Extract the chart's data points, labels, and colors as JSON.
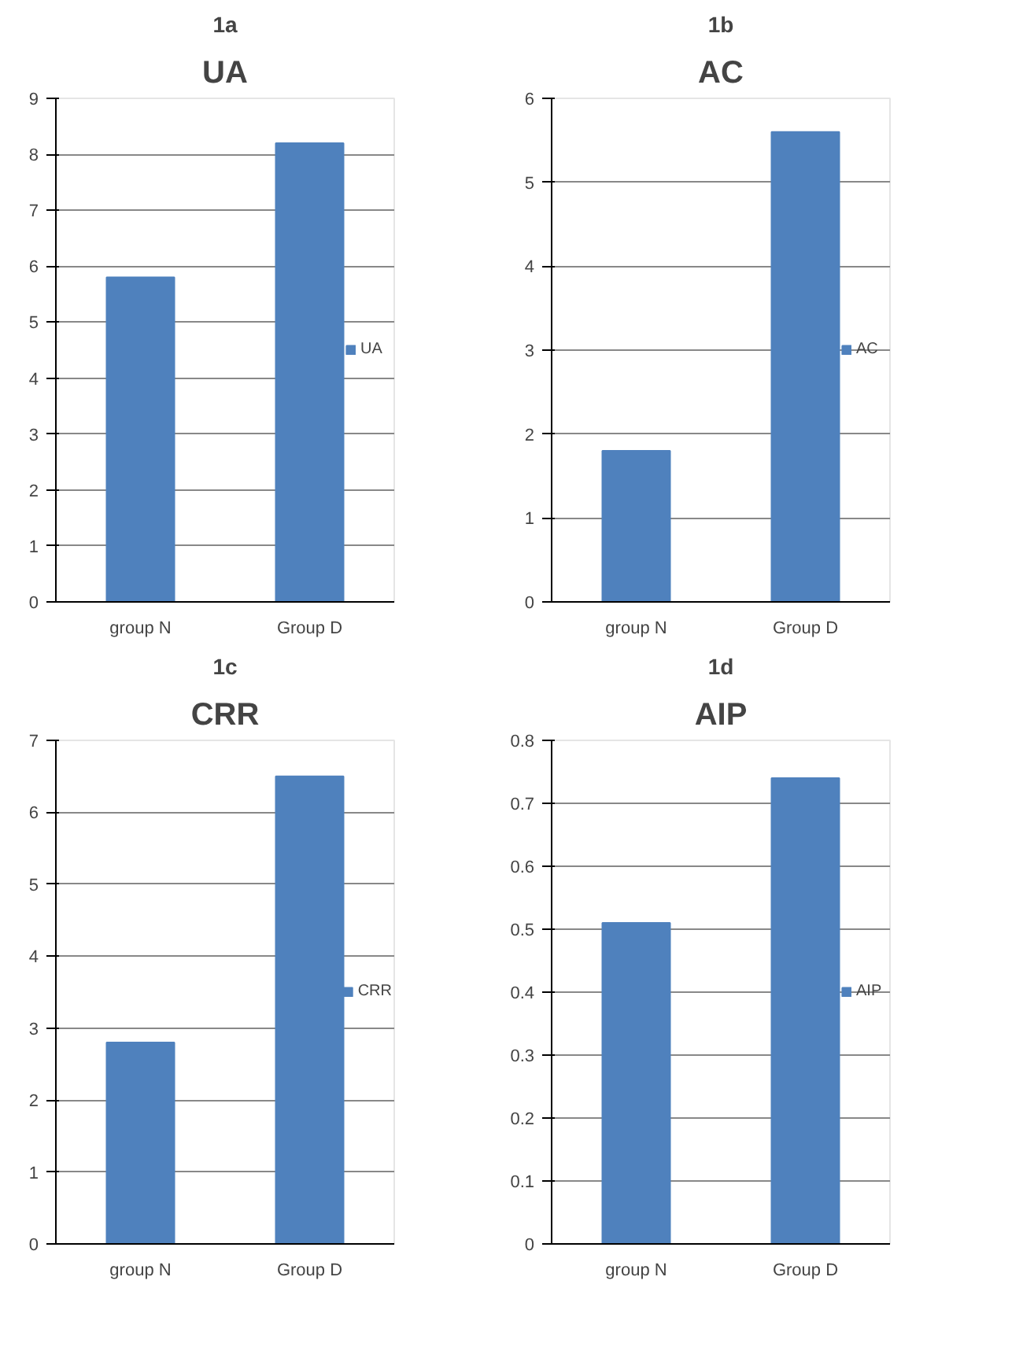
{
  "chart_data": [
    {
      "type": "bar",
      "title": "UA",
      "annotations": [
        "1a"
      ],
      "categories": [
        "group N",
        "Group D"
      ],
      "series": [
        {
          "name": "UA",
          "color": "#4f81bd",
          "values": [
            5.8,
            8.2
          ]
        }
      ],
      "ylim": [
        0,
        9
      ],
      "yticks": [
        0,
        1,
        2,
        3,
        4,
        5,
        6,
        7,
        8,
        9
      ],
      "grid": "y",
      "legend": "right"
    },
    {
      "type": "bar",
      "title": "AC",
      "annotations": [
        "1b"
      ],
      "categories": [
        "group N",
        "Group D"
      ],
      "series": [
        {
          "name": "AC",
          "color": "#4f81bd",
          "values": [
            1.8,
            5.6
          ]
        }
      ],
      "ylim": [
        0,
        6
      ],
      "yticks": [
        0,
        1,
        2,
        3,
        4,
        5,
        6
      ],
      "grid": "y",
      "legend": "right"
    },
    {
      "type": "bar",
      "title": "CRR",
      "annotations": [
        "1c"
      ],
      "categories": [
        "group N",
        "Group D"
      ],
      "series": [
        {
          "name": "CRR",
          "color": "#4f81bd",
          "values": [
            2.8,
            6.5
          ]
        }
      ],
      "ylim": [
        0,
        7
      ],
      "yticks": [
        0,
        1,
        2,
        3,
        4,
        5,
        6,
        7
      ],
      "grid": "y",
      "legend": "right"
    },
    {
      "type": "bar",
      "title": "AIP",
      "annotations": [
        "1d"
      ],
      "categories": [
        "group N",
        "Group D"
      ],
      "series": [
        {
          "name": "AIP",
          "color": "#4f81bd",
          "values": [
            0.51,
            0.74
          ]
        }
      ],
      "ylim": [
        0,
        0.8
      ],
      "yticks": [
        0,
        {
          "value": 0.1,
          "label": "0.1"
        },
        {
          "value": 0.2,
          "label": "0.2"
        },
        {
          "value": 0.3,
          "label": "0.3"
        },
        {
          "value": 0.4,
          "label": "0.4"
        },
        {
          "value": 0.5,
          "label": "0.5"
        },
        {
          "value": 0.6,
          "label": "0.6"
        },
        {
          "value": 0.7,
          "label": "0.7"
        },
        {
          "value": 0.8,
          "label": "0.8"
        }
      ],
      "grid": "y",
      "legend": "right"
    }
  ]
}
